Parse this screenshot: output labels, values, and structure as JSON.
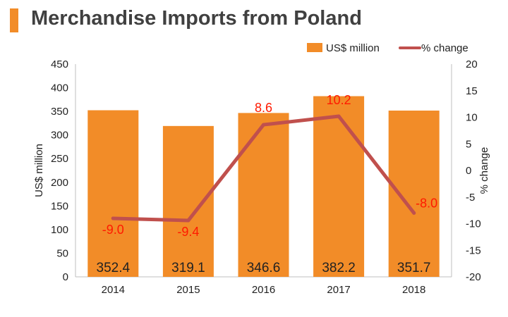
{
  "colors": {
    "accent": "#f28c28",
    "bar": "#f28c28",
    "line": "#c0504d",
    "pct_label": "#ff1a00",
    "axis": "#bfbfbf"
  },
  "chart_data": {
    "type": "bar",
    "title": "Merchandise Imports from Poland",
    "categories": [
      "2014",
      "2015",
      "2016",
      "2017",
      "2018"
    ],
    "series": [
      {
        "name": "US$ million",
        "kind": "bar",
        "axis": "left",
        "values": [
          352.4,
          319.1,
          346.6,
          382.2,
          351.7
        ],
        "labels": [
          "352.4",
          "319.1",
          "346.6",
          "382.2",
          "351.7"
        ]
      },
      {
        "name": "% change",
        "kind": "line",
        "axis": "right",
        "values": [
          -9.0,
          -9.4,
          8.6,
          10.2,
          -8.0
        ],
        "labels": [
          "-9.0",
          "-9.4",
          "8.6",
          "10.2",
          "-8.0"
        ]
      }
    ],
    "ylabel": "US$ million",
    "y2label": "% change",
    "ylim": [
      0,
      450
    ],
    "y2lim": [
      -20,
      20
    ],
    "yticks": [
      "0",
      "50",
      "100",
      "150",
      "200",
      "250",
      "300",
      "350",
      "400",
      "450"
    ],
    "y2ticks": [
      "-20",
      "-15",
      "-10",
      "-5",
      "0",
      "5",
      "10",
      "15",
      "20"
    ],
    "legend": "top-right",
    "grid": false
  }
}
